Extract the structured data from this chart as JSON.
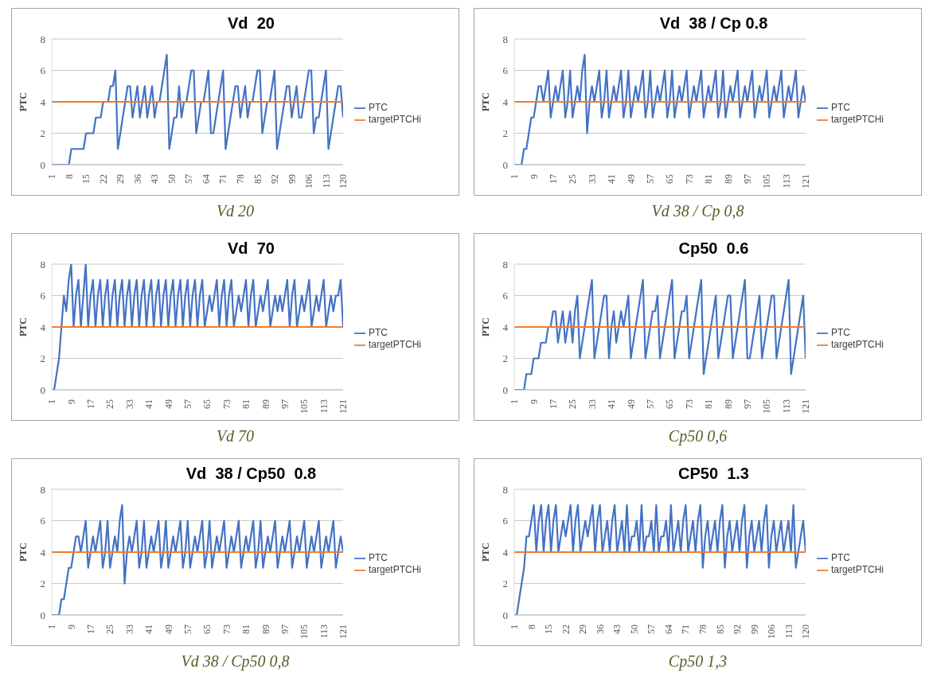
{
  "chart_data": [
    {
      "type": "line",
      "title": "Vd  20",
      "ylabel": "PTC",
      "annotations": [
        "Vd 20"
      ],
      "grid": "y",
      "legend": "right",
      "marker": "none",
      "x": [
        1,
        2,
        3,
        4,
        5,
        6,
        7,
        8,
        9,
        10,
        11,
        12,
        13,
        14,
        15,
        16,
        17,
        18,
        19,
        20,
        21,
        22,
        23,
        24,
        25,
        26,
        27,
        28,
        29,
        30,
        31,
        32,
        33,
        34,
        35,
        36,
        37,
        38,
        39,
        40,
        41,
        42,
        43,
        44,
        45,
        46,
        47,
        48,
        49,
        50,
        51,
        52,
        53,
        54,
        55,
        56,
        57,
        58,
        59,
        60,
        61,
        62,
        63,
        64,
        65,
        66,
        67,
        68,
        69,
        70,
        71,
        72,
        73,
        74,
        75,
        76,
        77,
        78,
        79,
        80,
        81,
        82,
        83,
        84,
        85,
        86,
        87,
        88,
        89,
        90,
        91,
        92,
        93,
        94,
        95,
        96,
        97,
        98,
        99,
        100,
        101,
        102,
        103,
        104,
        105,
        106,
        107,
        108,
        109,
        110,
        111,
        112,
        113,
        114,
        115,
        116,
        117,
        118,
        119,
        120
      ],
      "xlim": [
        1,
        120
      ],
      "xticks": [
        1,
        8,
        15,
        22,
        29,
        36,
        43,
        50,
        57,
        64,
        71,
        78,
        85,
        92,
        99,
        106,
        113,
        120
      ],
      "ylim": [
        0,
        8
      ],
      "yticks": [
        0,
        2,
        4,
        6,
        8
      ],
      "series": [
        {
          "name": "PTC",
          "color": "#4472c4",
          "values": [
            0,
            0,
            0,
            0,
            0,
            0,
            0,
            0,
            1,
            1,
            1,
            1,
            1,
            1,
            2,
            2,
            2,
            2,
            3,
            3,
            3,
            4,
            4,
            4,
            5,
            5,
            6,
            1,
            2,
            3,
            4,
            5,
            5,
            3,
            4,
            5,
            3,
            4,
            5,
            3,
            4,
            5,
            3,
            4,
            4,
            5,
            6,
            7,
            1,
            2,
            3,
            3,
            5,
            3,
            4,
            4,
            5,
            6,
            6,
            2,
            3,
            4,
            4,
            5,
            6,
            2,
            2,
            3,
            4,
            5,
            6,
            1,
            2,
            3,
            4,
            5,
            5,
            3,
            4,
            5,
            3,
            4,
            4,
            5,
            6,
            6,
            2,
            3,
            4,
            4,
            5,
            6,
            1,
            2,
            3,
            4,
            5,
            5,
            3,
            4,
            5,
            3,
            3,
            4,
            5,
            6,
            6,
            2,
            3,
            3,
            4,
            5,
            6,
            1,
            2,
            3,
            4,
            5,
            5,
            3
          ]
        },
        {
          "name": "targetPTCHi",
          "color": "#ed7d31",
          "x": [
            1,
            120
          ],
          "values": [
            4,
            4
          ]
        }
      ]
    },
    {
      "type": "line",
      "title": "Vd  38 / Cp 0.8",
      "ylabel": "PTC",
      "annotations": [
        "Vd 38 / Cp 0,8"
      ],
      "grid": "y",
      "legend": "right",
      "marker": "none",
      "x": [
        1,
        2,
        3,
        4,
        5,
        6,
        7,
        8,
        9,
        10,
        11,
        12,
        13,
        14,
        15,
        16,
        17,
        18,
        19,
        20,
        21,
        22,
        23,
        24,
        25,
        26,
        27,
        28,
        29,
        30,
        31,
        32,
        33,
        34,
        35,
        36,
        37,
        38,
        39,
        40,
        41,
        42,
        43,
        44,
        45,
        46,
        47,
        48,
        49,
        50,
        51,
        52,
        53,
        54,
        55,
        56,
        57,
        58,
        59,
        60,
        61,
        62,
        63,
        64,
        65,
        66,
        67,
        68,
        69,
        70,
        71,
        72,
        73,
        74,
        75,
        76,
        77,
        78,
        79,
        80,
        81,
        82,
        83,
        84,
        85,
        86,
        87,
        88,
        89,
        90,
        91,
        92,
        93,
        94,
        95,
        96,
        97,
        98,
        99,
        100,
        101,
        102,
        103,
        104,
        105,
        106,
        107,
        108,
        109,
        110,
        111,
        112,
        113,
        114,
        115,
        116,
        117,
        118,
        119,
        120,
        121
      ],
      "xlim": [
        1,
        121
      ],
      "xticks": [
        1,
        9,
        17,
        25,
        33,
        41,
        49,
        57,
        65,
        73,
        81,
        89,
        97,
        105,
        113,
        121
      ],
      "ylim": [
        0,
        8
      ],
      "yticks": [
        0,
        2,
        4,
        6,
        8
      ],
      "series": [
        {
          "name": "PTC",
          "color": "#4472c4",
          "values": [
            0,
            0,
            0,
            0,
            1,
            1,
            2,
            3,
            3,
            4,
            5,
            5,
            4,
            5,
            6,
            3,
            4,
            5,
            4,
            5,
            6,
            3,
            4,
            6,
            3,
            4,
            5,
            4,
            6,
            7,
            2,
            4,
            5,
            4,
            5,
            6,
            3,
            4,
            6,
            3,
            4,
            5,
            4,
            5,
            6,
            3,
            4,
            6,
            3,
            4,
            5,
            4,
            5,
            6,
            3,
            4,
            6,
            3,
            4,
            5,
            4,
            5,
            6,
            3,
            4,
            6,
            3,
            4,
            5,
            4,
            5,
            6,
            3,
            4,
            5,
            4,
            5,
            6,
            3,
            4,
            5,
            4,
            5,
            6,
            3,
            4,
            6,
            3,
            4,
            5,
            4,
            5,
            6,
            3,
            4,
            5,
            4,
            5,
            6,
            3,
            4,
            5,
            4,
            5,
            6,
            3,
            4,
            5,
            4,
            5,
            6,
            3,
            4,
            5,
            4,
            5,
            6,
            3,
            4,
            5,
            4
          ]
        },
        {
          "name": "targetPTCHi",
          "color": "#ed7d31",
          "x": [
            1,
            121
          ],
          "values": [
            4,
            4
          ]
        }
      ]
    },
    {
      "type": "line",
      "title": "Vd  70",
      "ylabel": "PTC",
      "annotations": [
        "Vd 70"
      ],
      "grid": "y",
      "legend": "right",
      "marker": "none",
      "x": [
        1,
        2,
        3,
        4,
        5,
        6,
        7,
        8,
        9,
        10,
        11,
        12,
        13,
        14,
        15,
        16,
        17,
        18,
        19,
        20,
        21,
        22,
        23,
        24,
        25,
        26,
        27,
        28,
        29,
        30,
        31,
        32,
        33,
        34,
        35,
        36,
        37,
        38,
        39,
        40,
        41,
        42,
        43,
        44,
        45,
        46,
        47,
        48,
        49,
        50,
        51,
        52,
        53,
        54,
        55,
        56,
        57,
        58,
        59,
        60,
        61,
        62,
        63,
        64,
        65,
        66,
        67,
        68,
        69,
        70,
        71,
        72,
        73,
        74,
        75,
        76,
        77,
        78,
        79,
        80,
        81,
        82,
        83,
        84,
        85,
        86,
        87,
        88,
        89,
        90,
        91,
        92,
        93,
        94,
        95,
        96,
        97,
        98,
        99,
        100,
        101,
        102,
        103,
        104,
        105,
        106,
        107,
        108,
        109,
        110,
        111,
        112,
        113,
        114,
        115,
        116,
        117,
        118,
        119,
        120,
        121
      ],
      "xlim": [
        1,
        121
      ],
      "xticks": [
        1,
        9,
        17,
        25,
        33,
        41,
        49,
        57,
        65,
        73,
        81,
        89,
        97,
        105,
        113,
        121
      ],
      "ylim": [
        0,
        8
      ],
      "yticks": [
        0,
        2,
        4,
        6,
        8
      ],
      "series": [
        {
          "name": "PTC",
          "color": "#4472c4",
          "values": [
            0,
            0,
            1,
            2,
            4,
            6,
            5,
            7,
            8,
            4,
            6,
            7,
            4,
            6,
            8,
            4,
            6,
            7,
            4,
            6,
            7,
            4,
            6,
            7,
            4,
            6,
            7,
            4,
            6,
            7,
            4,
            6,
            7,
            4,
            6,
            7,
            4,
            6,
            7,
            4,
            6,
            7,
            4,
            6,
            7,
            4,
            6,
            7,
            4,
            6,
            7,
            4,
            6,
            7,
            4,
            6,
            7,
            4,
            6,
            7,
            4,
            6,
            7,
            4,
            5,
            6,
            5,
            6,
            7,
            4,
            6,
            7,
            4,
            6,
            7,
            4,
            5,
            6,
            5,
            6,
            7,
            4,
            6,
            7,
            4,
            5,
            6,
            5,
            6,
            7,
            4,
            5,
            6,
            5,
            6,
            5,
            6,
            7,
            4,
            6,
            7,
            4,
            5,
            6,
            5,
            6,
            7,
            4,
            5,
            6,
            5,
            6,
            7,
            4,
            5,
            6,
            5,
            6,
            6,
            7,
            4
          ]
        },
        {
          "name": "targetPTCHi",
          "color": "#ed7d31",
          "x": [
            1,
            121
          ],
          "values": [
            4,
            4
          ]
        }
      ]
    },
    {
      "type": "line",
      "title": "Cp50  0.6",
      "ylabel": "PTC",
      "annotations": [
        "Cp50 0,6"
      ],
      "grid": "y",
      "legend": "right",
      "marker": "none",
      "x": [
        1,
        2,
        3,
        4,
        5,
        6,
        7,
        8,
        9,
        10,
        11,
        12,
        13,
        14,
        15,
        16,
        17,
        18,
        19,
        20,
        21,
        22,
        23,
        24,
        25,
        26,
        27,
        28,
        29,
        30,
        31,
        32,
        33,
        34,
        35,
        36,
        37,
        38,
        39,
        40,
        41,
        42,
        43,
        44,
        45,
        46,
        47,
        48,
        49,
        50,
        51,
        52,
        53,
        54,
        55,
        56,
        57,
        58,
        59,
        60,
        61,
        62,
        63,
        64,
        65,
        66,
        67,
        68,
        69,
        70,
        71,
        72,
        73,
        74,
        75,
        76,
        77,
        78,
        79,
        80,
        81,
        82,
        83,
        84,
        85,
        86,
        87,
        88,
        89,
        90,
        91,
        92,
        93,
        94,
        95,
        96,
        97,
        98,
        99,
        100,
        101,
        102,
        103,
        104,
        105,
        106,
        107,
        108,
        109,
        110,
        111,
        112,
        113,
        114,
        115,
        116,
        117,
        118,
        119,
        120,
        121
      ],
      "xlim": [
        1,
        121
      ],
      "xticks": [
        1,
        9,
        17,
        25,
        33,
        41,
        49,
        57,
        65,
        73,
        81,
        89,
        97,
        105,
        113,
        121
      ],
      "ylim": [
        0,
        8
      ],
      "yticks": [
        0,
        2,
        4,
        6,
        8
      ],
      "series": [
        {
          "name": "PTC",
          "color": "#4472c4",
          "values": [
            0,
            0,
            0,
            0,
            0,
            1,
            1,
            1,
            2,
            2,
            2,
            3,
            3,
            3,
            4,
            4,
            5,
            5,
            3,
            4,
            5,
            3,
            4,
            5,
            3,
            5,
            6,
            2,
            3,
            4,
            5,
            6,
            7,
            2,
            3,
            4,
            5,
            6,
            6,
            2,
            4,
            5,
            3,
            4,
            5,
            4,
            5,
            6,
            2,
            3,
            4,
            5,
            6,
            7,
            2,
            3,
            4,
            5,
            5,
            6,
            2,
            3,
            4,
            5,
            6,
            7,
            2,
            3,
            4,
            5,
            5,
            6,
            2,
            3,
            4,
            5,
            6,
            7,
            1,
            2,
            3,
            4,
            5,
            6,
            2,
            3,
            4,
            5,
            6,
            6,
            2,
            3,
            4,
            5,
            6,
            7,
            2,
            2,
            3,
            4,
            5,
            6,
            2,
            3,
            4,
            5,
            6,
            6,
            2,
            3,
            4,
            5,
            6,
            7,
            1,
            2,
            3,
            4,
            5,
            6,
            2
          ]
        },
        {
          "name": "targetPTCHi",
          "color": "#ed7d31",
          "x": [
            1,
            121
          ],
          "values": [
            4,
            4
          ]
        }
      ]
    },
    {
      "type": "line",
      "title": "Vd  38 / Cp50  0.8",
      "ylabel": "PTC",
      "annotations": [
        "Vd 38 / Cp50 0,8"
      ],
      "grid": "y",
      "legend": "right",
      "marker": "none",
      "x": [
        1,
        2,
        3,
        4,
        5,
        6,
        7,
        8,
        9,
        10,
        11,
        12,
        13,
        14,
        15,
        16,
        17,
        18,
        19,
        20,
        21,
        22,
        23,
        24,
        25,
        26,
        27,
        28,
        29,
        30,
        31,
        32,
        33,
        34,
        35,
        36,
        37,
        38,
        39,
        40,
        41,
        42,
        43,
        44,
        45,
        46,
        47,
        48,
        49,
        50,
        51,
        52,
        53,
        54,
        55,
        56,
        57,
        58,
        59,
        60,
        61,
        62,
        63,
        64,
        65,
        66,
        67,
        68,
        69,
        70,
        71,
        72,
        73,
        74,
        75,
        76,
        77,
        78,
        79,
        80,
        81,
        82,
        83,
        84,
        85,
        86,
        87,
        88,
        89,
        90,
        91,
        92,
        93,
        94,
        95,
        96,
        97,
        98,
        99,
        100,
        101,
        102,
        103,
        104,
        105,
        106,
        107,
        108,
        109,
        110,
        111,
        112,
        113,
        114,
        115,
        116,
        117,
        118,
        119,
        120,
        121
      ],
      "xlim": [
        1,
        121
      ],
      "xticks": [
        1,
        9,
        17,
        25,
        33,
        41,
        49,
        57,
        65,
        73,
        81,
        89,
        97,
        105,
        113,
        121
      ],
      "ylim": [
        0,
        8
      ],
      "yticks": [
        0,
        2,
        4,
        6,
        8
      ],
      "series": [
        {
          "name": "PTC",
          "color": "#4472c4",
          "values": [
            0,
            0,
            0,
            0,
            1,
            1,
            2,
            3,
            3,
            4,
            5,
            5,
            4,
            5,
            6,
            3,
            4,
            5,
            4,
            5,
            6,
            3,
            4,
            6,
            3,
            4,
            5,
            4,
            6,
            7,
            2,
            4,
            5,
            4,
            5,
            6,
            3,
            4,
            6,
            3,
            4,
            5,
            4,
            5,
            6,
            3,
            4,
            6,
            3,
            4,
            5,
            4,
            5,
            6,
            3,
            4,
            6,
            3,
            4,
            5,
            4,
            5,
            6,
            3,
            4,
            6,
            3,
            4,
            5,
            4,
            5,
            6,
            3,
            4,
            5,
            4,
            5,
            6,
            3,
            4,
            5,
            4,
            5,
            6,
            3,
            4,
            6,
            3,
            4,
            5,
            4,
            5,
            6,
            3,
            4,
            5,
            4,
            5,
            6,
            3,
            4,
            5,
            4,
            5,
            6,
            3,
            4,
            5,
            4,
            5,
            6,
            3,
            4,
            5,
            4,
            5,
            6,
            3,
            4,
            5,
            4
          ]
        },
        {
          "name": "targetPTCHi",
          "color": "#ed7d31",
          "x": [
            1,
            121
          ],
          "values": [
            4,
            4
          ]
        }
      ]
    },
    {
      "type": "line",
      "title": "CP50  1.3",
      "ylabel": "PTC",
      "annotations": [
        "Cp50 1,3"
      ],
      "grid": "y",
      "legend": "right",
      "marker": "none",
      "x": [
        1,
        2,
        3,
        4,
        5,
        6,
        7,
        8,
        9,
        10,
        11,
        12,
        13,
        14,
        15,
        16,
        17,
        18,
        19,
        20,
        21,
        22,
        23,
        24,
        25,
        26,
        27,
        28,
        29,
        30,
        31,
        32,
        33,
        34,
        35,
        36,
        37,
        38,
        39,
        40,
        41,
        42,
        43,
        44,
        45,
        46,
        47,
        48,
        49,
        50,
        51,
        52,
        53,
        54,
        55,
        56,
        57,
        58,
        59,
        60,
        61,
        62,
        63,
        64,
        65,
        66,
        67,
        68,
        69,
        70,
        71,
        72,
        73,
        74,
        75,
        76,
        77,
        78,
        79,
        80,
        81,
        82,
        83,
        84,
        85,
        86,
        87,
        88,
        89,
        90,
        91,
        92,
        93,
        94,
        95,
        96,
        97,
        98,
        99,
        100,
        101,
        102,
        103,
        104,
        105,
        106,
        107,
        108,
        109,
        110,
        111,
        112,
        113,
        114,
        115,
        116,
        117,
        118,
        119,
        120
      ],
      "xlim": [
        1,
        120
      ],
      "xticks": [
        1,
        8,
        15,
        22,
        29,
        36,
        43,
        50,
        57,
        64,
        71,
        78,
        85,
        92,
        99,
        106,
        113,
        120
      ],
      "ylim": [
        0,
        8
      ],
      "yticks": [
        0,
        2,
        4,
        6,
        8
      ],
      "series": [
        {
          "name": "PTC",
          "color": "#4472c4",
          "values": [
            0,
            0,
            1,
            2,
            3,
            5,
            5,
            6,
            7,
            4,
            6,
            7,
            4,
            6,
            7,
            4,
            6,
            7,
            4,
            5,
            6,
            5,
            6,
            7,
            4,
            6,
            7,
            4,
            5,
            6,
            5,
            6,
            7,
            4,
            6,
            7,
            4,
            5,
            6,
            4,
            6,
            7,
            4,
            5,
            6,
            4,
            7,
            4,
            5,
            5,
            6,
            4,
            7,
            4,
            5,
            5,
            6,
            4,
            7,
            4,
            5,
            5,
            6,
            4,
            7,
            4,
            5,
            6,
            4,
            6,
            7,
            4,
            5,
            6,
            4,
            6,
            7,
            3,
            5,
            6,
            4,
            5,
            6,
            4,
            6,
            7,
            3,
            5,
            6,
            4,
            5,
            6,
            4,
            6,
            7,
            3,
            5,
            6,
            4,
            5,
            6,
            4,
            6,
            7,
            3,
            5,
            6,
            4,
            5,
            6,
            4,
            5,
            6,
            4,
            7,
            3,
            4,
            5,
            6,
            4
          ]
        },
        {
          "name": "targetPTCHi",
          "color": "#ed7d31",
          "x": [
            1,
            120
          ],
          "values": [
            4,
            4
          ]
        }
      ]
    }
  ]
}
